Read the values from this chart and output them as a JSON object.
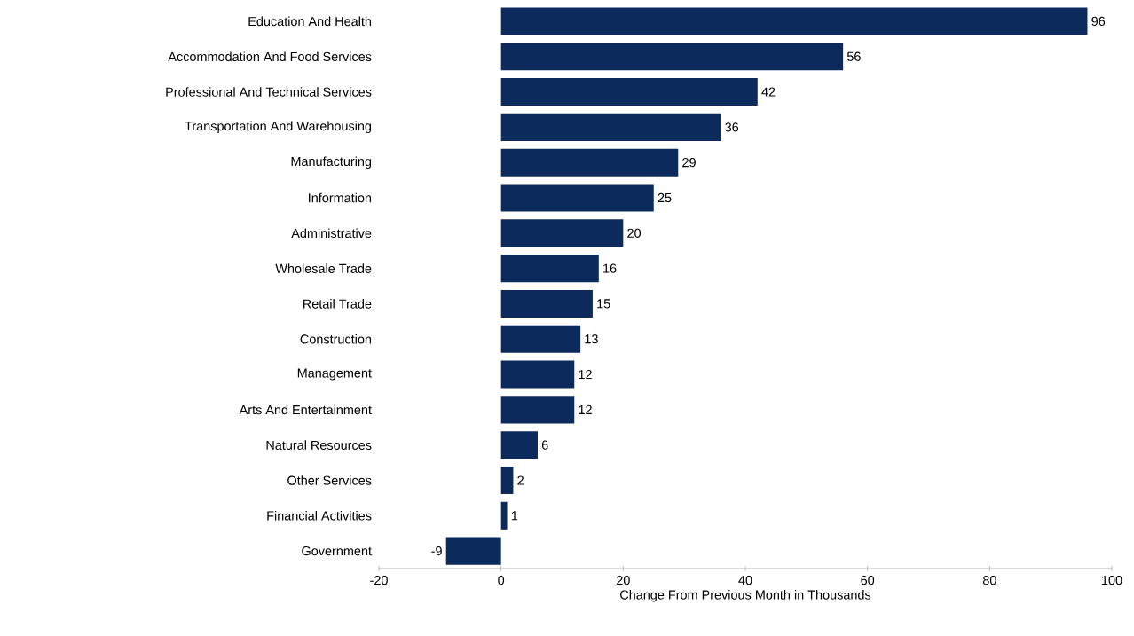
{
  "chart_data": {
    "type": "bar",
    "orientation": "horizontal",
    "xlabel": "Change From Previous Month in Thousands",
    "categories": [
      "Education And Health",
      "Accommodation And Food Services",
      "Professional And Technical Services",
      "Transportation And Warehousing",
      "Manufacturing",
      "Information",
      "Administrative",
      "Wholesale Trade",
      "Retail Trade",
      "Construction",
      "Management",
      "Arts And Entertainment",
      "Natural Resources",
      "Other Services",
      "Financial Activities",
      "Government"
    ],
    "values": [
      96,
      56,
      42,
      36,
      29,
      25,
      20,
      16,
      15,
      13,
      12,
      12,
      6,
      2,
      1,
      -9
    ],
    "color": "#0c2a5c",
    "xlim": [
      -20,
      100
    ],
    "xticks": [
      -20,
      0,
      20,
      40,
      60,
      80,
      100
    ],
    "grid": false,
    "data_labels": true
  }
}
